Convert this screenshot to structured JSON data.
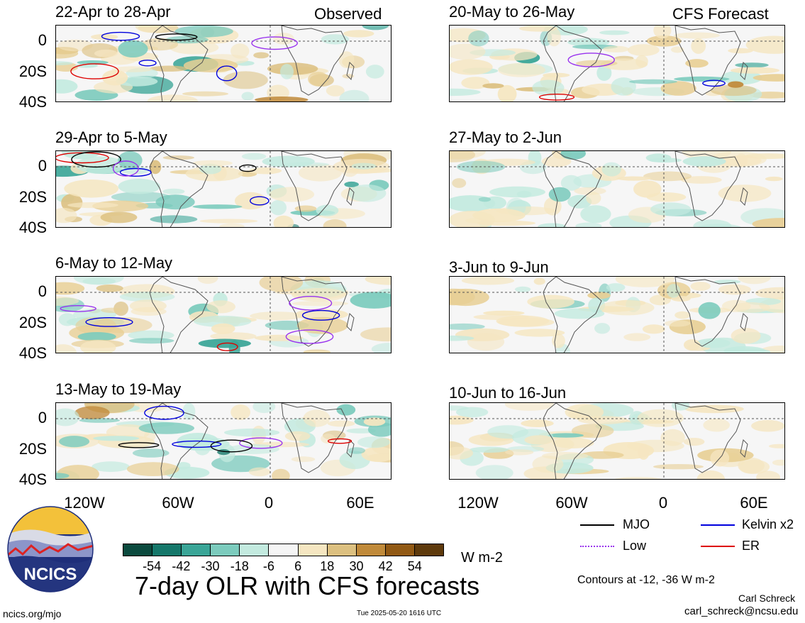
{
  "observed_label": "Observed",
  "forecast_label": "CFS Forecast",
  "panels_left": [
    {
      "title": "22-Apr to 28-Apr"
    },
    {
      "title": "29-Apr to 5-May"
    },
    {
      "title": "6-May to 12-May"
    },
    {
      "title": "13-May to 19-May"
    }
  ],
  "panels_right": [
    {
      "title": "20-May to 26-May"
    },
    {
      "title": "27-May to 2-Jun"
    },
    {
      "title": "3-Jun to 9-Jun"
    },
    {
      "title": "10-Jun to 16-Jun"
    }
  ],
  "y_ticks": [
    "0",
    "20S",
    "40S"
  ],
  "x_ticks": [
    "120W",
    "60W",
    "0",
    "60E"
  ],
  "legend": [
    {
      "label": "MJO",
      "color": "#000000",
      "style": "solid"
    },
    {
      "label": "Kelvin x2",
      "color": "#0000dd",
      "style": "solid"
    },
    {
      "label": "Low",
      "color": "#9933ee",
      "style": "dotted"
    },
    {
      "label": "ER",
      "color": "#dd0000",
      "style": "solid"
    }
  ],
  "colorbar": {
    "colors": [
      "#0b4a3e",
      "#15776a",
      "#3aa597",
      "#7ccbbd",
      "#c3eadf",
      "#f5f5f5",
      "#f5e6c1",
      "#dcc080",
      "#c08a3a",
      "#915914",
      "#5e3a0c"
    ],
    "tick_labels": [
      "-54",
      "-42",
      "-30",
      "-18",
      "-6",
      "6",
      "18",
      "30",
      "42",
      "54"
    ],
    "units": "W m-2"
  },
  "main_title": "7-day OLR with CFS forecasts",
  "contours_note": "Contours at -12, -36 W m-2",
  "author": "Carl Schreck",
  "email": "carl_schreck@ncsu.edu",
  "website": "ncics.org/mjo",
  "timestamp": "Tue 2025-05-20 1616 UTC",
  "logo_text": "NCICS"
}
